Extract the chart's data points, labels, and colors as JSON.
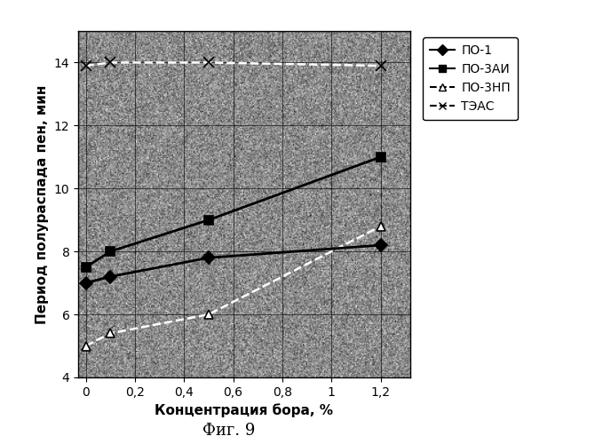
{
  "series": [
    {
      "label": "ПО-1",
      "x": [
        0,
        0.1,
        0.5,
        1.2
      ],
      "y": [
        7.0,
        7.2,
        7.8,
        8.2
      ],
      "color": "#000000",
      "marker": "D",
      "linestyle": "-",
      "linewidth": 2.0,
      "markersize": 7,
      "zorder": 5
    },
    {
      "label": "ПО-3АИ",
      "x": [
        0,
        0.1,
        0.5,
        1.2
      ],
      "y": [
        7.5,
        8.0,
        9.0,
        11.0
      ],
      "color": "#000000",
      "marker": "s",
      "linestyle": "-",
      "linewidth": 2.0,
      "markersize": 7,
      "zorder": 5
    },
    {
      "label": "ПО-3НП",
      "x": [
        0,
        0.1,
        0.5,
        1.2
      ],
      "y": [
        5.0,
        5.4,
        6.0,
        8.8
      ],
      "color": "#ffffff",
      "marker": "^",
      "linestyle": "--",
      "linewidth": 1.8,
      "markersize": 7,
      "zorder": 4
    },
    {
      "label": "ТЭАС",
      "x": [
        0,
        0.1,
        0.5,
        1.2
      ],
      "y": [
        13.9,
        14.0,
        14.0,
        13.9
      ],
      "color": "#ffffff",
      "marker": "x",
      "linestyle": "--",
      "linewidth": 1.8,
      "markersize": 8,
      "zorder": 4
    }
  ],
  "xlabel": "Концентрация бора, %",
  "ylabel": "Период полураспада пен, мин",
  "caption": "Фиг. 9",
  "xlim": [
    -0.03,
    1.32
  ],
  "ylim": [
    4,
    15
  ],
  "xticks": [
    0,
    0.2,
    0.4,
    0.6,
    0.8,
    1.0,
    1.2
  ],
  "yticks": [
    4,
    6,
    8,
    10,
    12,
    14
  ],
  "plot_bg_color": "#888888",
  "outer_bg_color": "#ffffff",
  "grid_color": "#000000",
  "label_fontsize": 11,
  "tick_fontsize": 10,
  "legend_labels": [
    "ПО-1",
    "ПО-3АИ",
    "ПО-3НП",
    "ТЭАС"
  ],
  "legend_colors": [
    "#000000",
    "#000000",
    "#000000",
    "#000000"
  ],
  "legend_markers": [
    "D",
    "s",
    "^",
    "x"
  ],
  "legend_linestyles": [
    "-",
    "-",
    "--",
    "--"
  ]
}
